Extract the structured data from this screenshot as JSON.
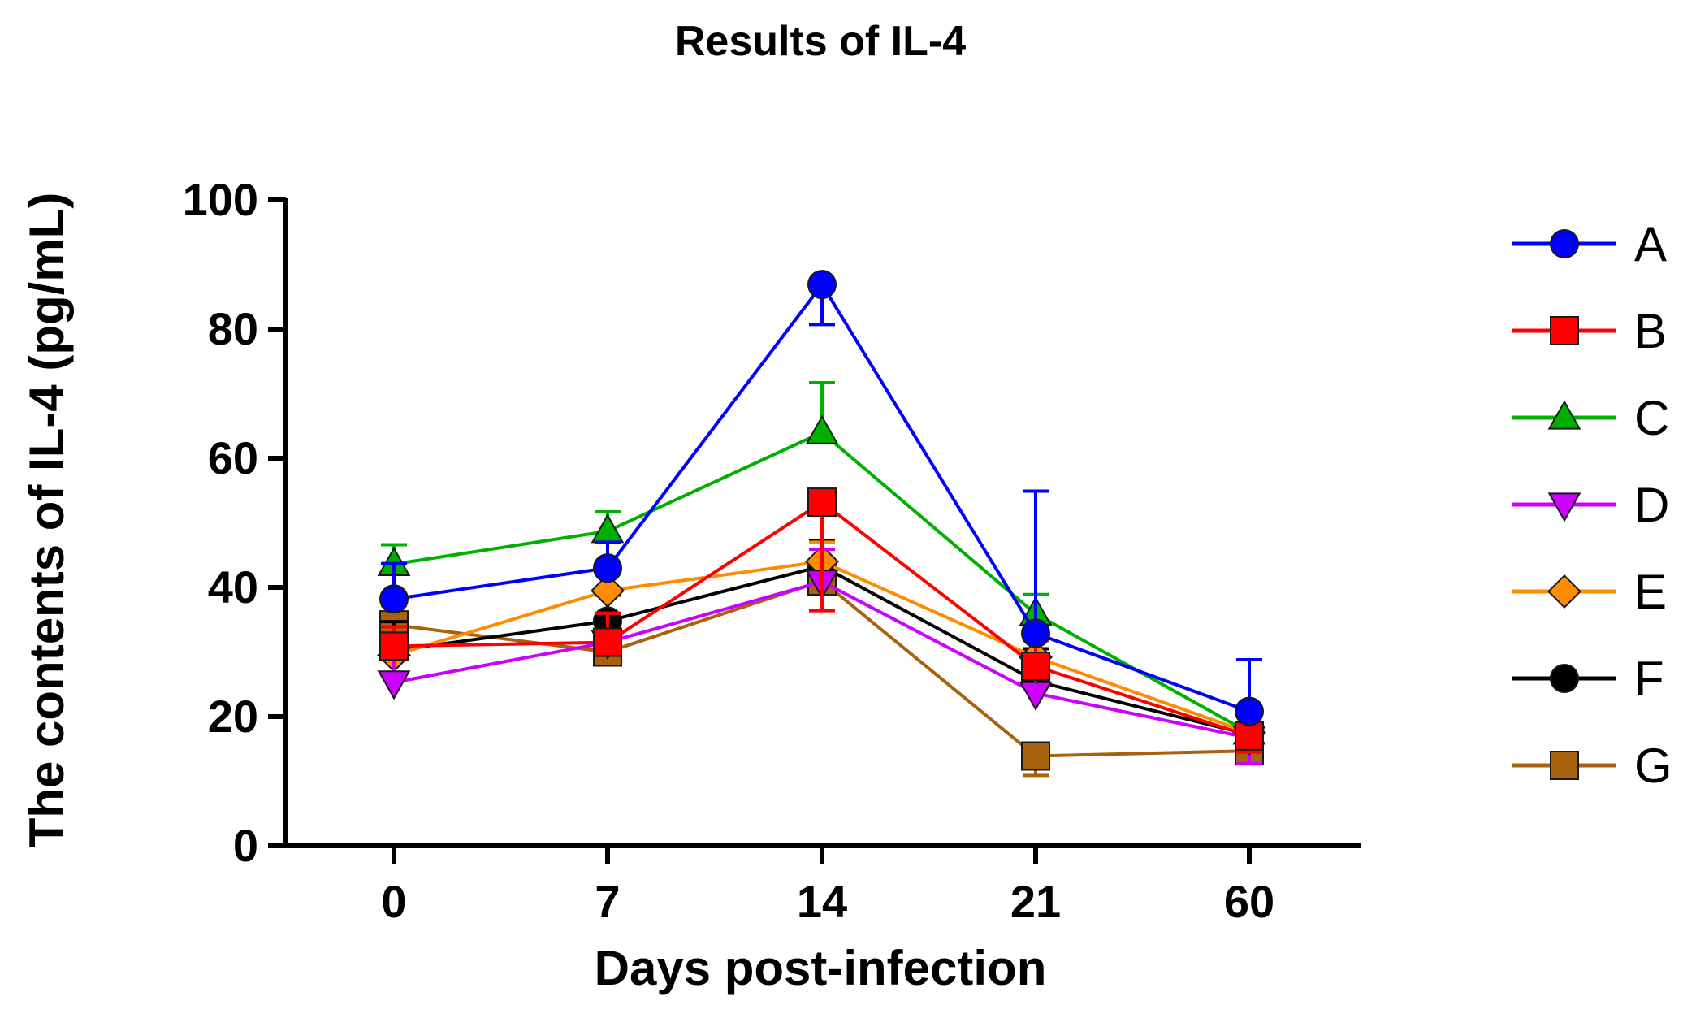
{
  "chart_data": {
    "type": "line",
    "title": "Results of IL-4",
    "xlabel": "Days post-infection",
    "ylabel": "The contents of IL-4 (pg/mL)",
    "categories": [
      "0",
      "7",
      "14",
      "21",
      "60"
    ],
    "ylim": [
      0,
      100
    ],
    "yticks": [
      0,
      20,
      40,
      60,
      80,
      100
    ],
    "grid": false,
    "legend_position": "right",
    "series": [
      {
        "name": "A",
        "color": "#0000ff",
        "marker": "circle",
        "values": [
          38.2,
          43.0,
          86.9,
          32.9,
          20.8
        ],
        "errors": [
          5.5,
          4.0,
          6.2,
          22.0,
          8.0
        ]
      },
      {
        "name": "B",
        "color": "#ff0000",
        "marker": "square",
        "values": [
          30.9,
          31.5,
          53.2,
          27.8,
          17.0
        ],
        "errors": [
          3.0,
          4.5,
          16.8,
          4.0,
          2.5
        ]
      },
      {
        "name": "C",
        "color": "#00b000",
        "marker": "triangle-up",
        "values": [
          43.6,
          48.7,
          64.0,
          35.9,
          17.5
        ],
        "errors": [
          3.0,
          3.0,
          7.7,
          3.0,
          2.0
        ]
      },
      {
        "name": "D",
        "color": "#cc00ff",
        "marker": "triangle-down",
        "values": [
          25.3,
          31.5,
          40.9,
          23.6,
          16.7
        ],
        "errors": [
          4.8,
          4.5,
          5.0,
          4.0,
          4.0
        ]
      },
      {
        "name": "E",
        "color": "#ff8c00",
        "marker": "diamond",
        "values": [
          29.5,
          39.5,
          44.0,
          29.2,
          17.5
        ],
        "errors": [
          3.0,
          3.0,
          3.0,
          3.0,
          2.0
        ]
      },
      {
        "name": "F",
        "color": "#000000",
        "marker": "circle",
        "values": [
          30.2,
          34.8,
          43.3,
          25.5,
          17.2
        ],
        "errors": [
          4.5,
          4.0,
          4.0,
          5.0,
          2.0
        ]
      },
      {
        "name": "G",
        "color": "#a8620e",
        "marker": "square",
        "values": [
          34.2,
          30.0,
          41.0,
          13.9,
          14.7
        ],
        "errors": [
          3.0,
          5.5,
          6.0,
          3.0,
          2.0
        ]
      }
    ]
  }
}
